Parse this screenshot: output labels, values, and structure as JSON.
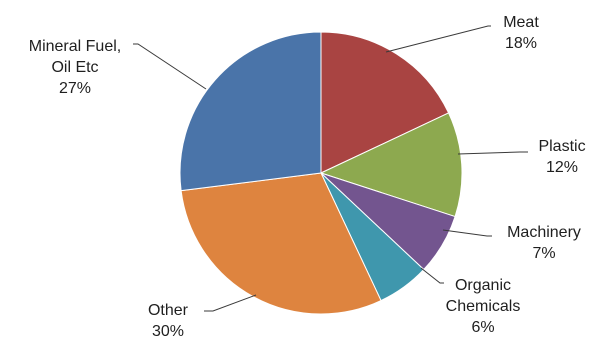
{
  "chart_data": {
    "type": "pie",
    "slices": [
      {
        "label_lines": [
          "Meat"
        ],
        "label": "Meat",
        "value": 18,
        "pct_label": "18%",
        "color": "#A94442"
      },
      {
        "label_lines": [
          "Plastic"
        ],
        "label": "Plastic",
        "value": 12,
        "pct_label": "12%",
        "color": "#8DA94F"
      },
      {
        "label_lines": [
          "Machinery"
        ],
        "label": "Machinery",
        "value": 7,
        "pct_label": "7%",
        "color": "#73558F"
      },
      {
        "label_lines": [
          "Organic",
          "Chemicals"
        ],
        "label": "Organic Chemicals",
        "value": 6,
        "pct_label": "6%",
        "color": "#3F97AD"
      },
      {
        "label_lines": [
          "Other"
        ],
        "label": "Other",
        "value": 30,
        "pct_label": "30%",
        "color": "#DE843F"
      },
      {
        "label_lines": [
          "Mineral Fuel,",
          "Oil Etc"
        ],
        "label": "Mineral Fuel, Oil Etc",
        "value": 27,
        "pct_label": "27%",
        "color": "#4A74A9"
      }
    ],
    "start_angle_deg": 0,
    "direction": "clockwise",
    "legend": "none",
    "data_labels": "outside with leader lines"
  }
}
